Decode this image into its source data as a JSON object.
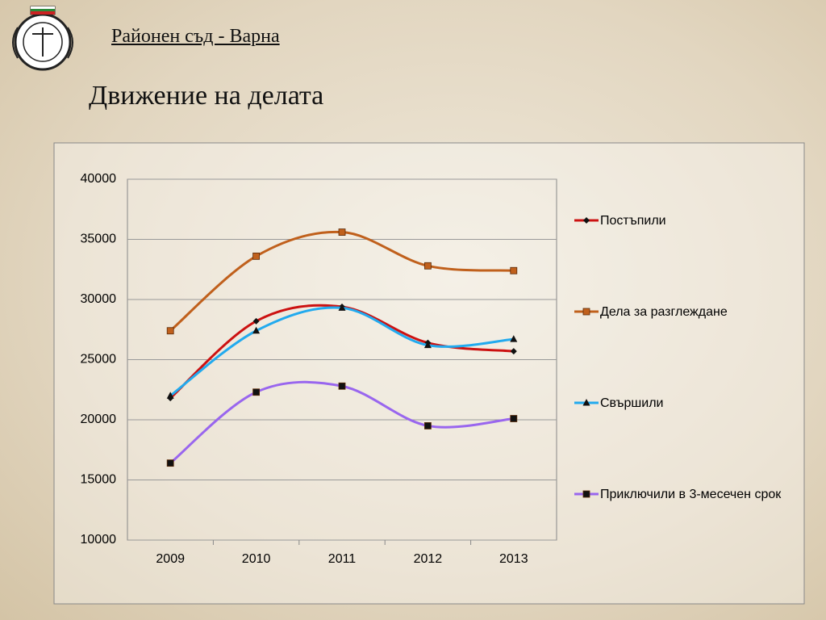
{
  "header": {
    "court": "Районен съд - Варна"
  },
  "chart_data": {
    "type": "line",
    "title": "Движение на делата",
    "categories": [
      "2009",
      "2010",
      "2011",
      "2012",
      "2013"
    ],
    "series": [
      {
        "name": "Постъпили",
        "color": "#cc1111",
        "marker": "diamond",
        "values": [
          21800,
          28200,
          29400,
          26400,
          25700
        ]
      },
      {
        "name": "Дела за разглеждане",
        "color": "#c0601c",
        "marker": "square",
        "values": [
          27400,
          33600,
          35600,
          32800,
          32400
        ]
      },
      {
        "name": "Свършили",
        "color": "#22aaee",
        "marker": "triangle",
        "values": [
          22000,
          27400,
          29300,
          26200,
          26700
        ]
      },
      {
        "name": "Приключили в 3-месечен срок",
        "color": "#9966ee",
        "marker": "square",
        "values": [
          16400,
          22300,
          22800,
          19500,
          20100
        ]
      }
    ],
    "ylim": [
      10000,
      40000
    ],
    "yticks": [
      10000,
      15000,
      20000,
      25000,
      30000,
      35000,
      40000
    ],
    "grid": true,
    "smooth": true,
    "legend": "right"
  }
}
